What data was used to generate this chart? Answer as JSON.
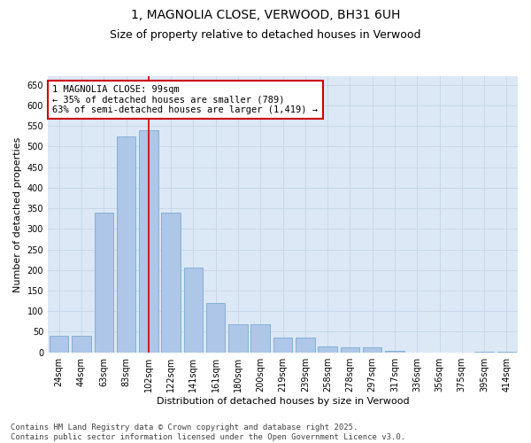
{
  "title1": "1, MAGNOLIA CLOSE, VERWOOD, BH31 6UH",
  "title2": "Size of property relative to detached houses in Verwood",
  "xlabel": "Distribution of detached houses by size in Verwood",
  "ylabel": "Number of detached properties",
  "categories": [
    "24sqm",
    "44sqm",
    "63sqm",
    "83sqm",
    "102sqm",
    "122sqm",
    "141sqm",
    "161sqm",
    "180sqm",
    "200sqm",
    "219sqm",
    "239sqm",
    "258sqm",
    "278sqm",
    "297sqm",
    "317sqm",
    "336sqm",
    "356sqm",
    "375sqm",
    "395sqm",
    "414sqm"
  ],
  "values": [
    40,
    40,
    340,
    525,
    540,
    340,
    207,
    120,
    68,
    68,
    35,
    35,
    15,
    12,
    12,
    3,
    0,
    0,
    0,
    2,
    2
  ],
  "bar_color": "#aec6e8",
  "bar_edge_color": "#7aaad0",
  "vline_x": 4,
  "vline_color": "#cc0000",
  "annotation_text": "1 MAGNOLIA CLOSE: 99sqm\n← 35% of detached houses are smaller (789)\n63% of semi-detached houses are larger (1,419) →",
  "annotation_box_color": "#ffffff",
  "annotation_border_color": "#cc0000",
  "ylim": [
    0,
    670
  ],
  "yticks": [
    0,
    50,
    100,
    150,
    200,
    250,
    300,
    350,
    400,
    450,
    500,
    550,
    600,
    650
  ],
  "footer_text": "Contains HM Land Registry data © Crown copyright and database right 2025.\nContains public sector information licensed under the Open Government Licence v3.0.",
  "grid_color": "#c8d8e8",
  "plot_bg_color": "#dce8f5",
  "fig_bg_color": "#ffffff",
  "title_fontsize": 10,
  "subtitle_fontsize": 9,
  "tick_fontsize": 7,
  "ylabel_fontsize": 8,
  "xlabel_fontsize": 8,
  "annotation_fontsize": 7.5,
  "footer_fontsize": 6.5
}
